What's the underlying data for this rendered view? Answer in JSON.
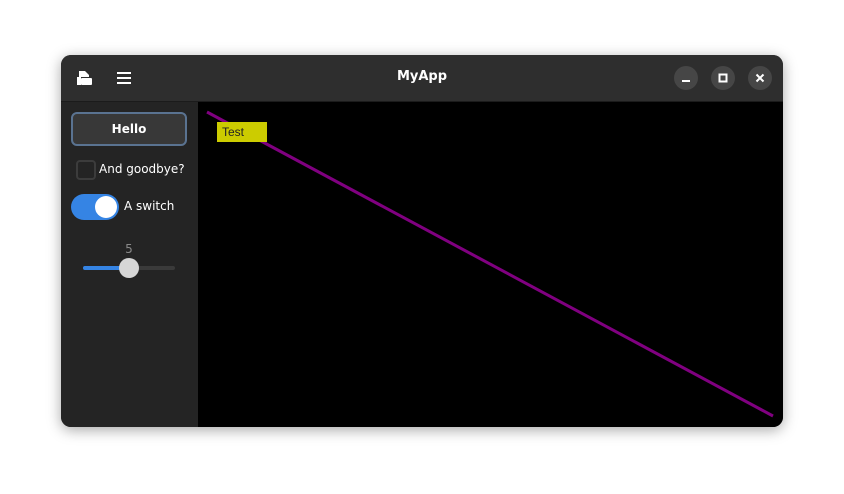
{
  "window": {
    "title": "MyApp"
  },
  "header": {
    "icons": [
      "open-document-icon",
      "hamburger-menu-icon"
    ],
    "controls": [
      "minimize",
      "maximize",
      "close"
    ]
  },
  "sidebar": {
    "button_label": "Hello",
    "checkbox": {
      "label": "And goodbye?",
      "checked": false
    },
    "switch": {
      "label": "A switch",
      "on": true
    },
    "slider": {
      "value": "5",
      "fraction": 0.5
    },
    "accent": "#3584e4"
  },
  "canvas": {
    "background": "#000000",
    "line_color": "#800080",
    "label": {
      "text": "Test",
      "background": "#cccc00"
    }
  }
}
